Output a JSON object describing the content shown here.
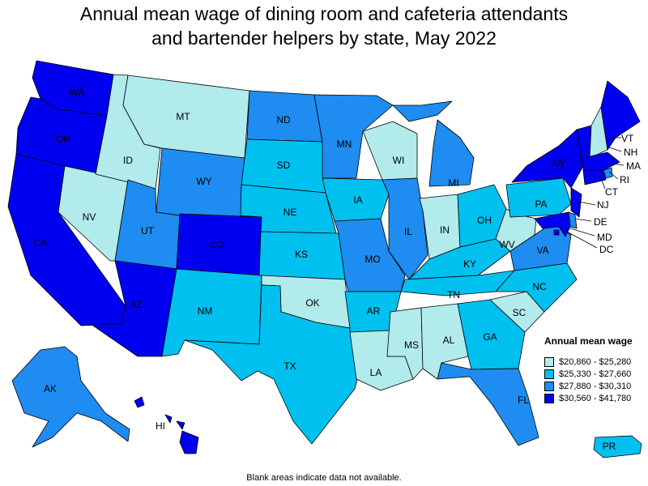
{
  "title_line1": "Annual mean wage of dining room and cafeteria attendants",
  "title_line2": "and bartender helpers by state, May 2022",
  "legend": {
    "title": "Annual mean wage",
    "items": [
      {
        "label": "$20,860 - $25,280",
        "color": "#b2ebeb"
      },
      {
        "label": "$25,330 - $27,660",
        "color": "#00c0f0"
      },
      {
        "label": "$27,880 - $30,310",
        "color": "#1e8cf0"
      },
      {
        "label": "$30,560 - $41,780",
        "color": "#0000f0"
      }
    ]
  },
  "footnote": "Blank areas indicate data not available.",
  "states": {
    "WA": 3,
    "OR": 3,
    "CA": 3,
    "NV": 0,
    "ID": 0,
    "MT": 0,
    "WY": 2,
    "UT": 2,
    "AZ": 3,
    "CO": 3,
    "NM": 1,
    "ND": 2,
    "SD": 1,
    "NE": 1,
    "KS": 1,
    "OK": 0,
    "TX": 1,
    "MN": 2,
    "IA": 1,
    "MO": 2,
    "AR": 1,
    "LA": 0,
    "WI": 0,
    "IL": 2,
    "MI": 2,
    "IN": 0,
    "OH": 1,
    "KY": 1,
    "TN": 1,
    "MS": 0,
    "AL": 0,
    "GA": 1,
    "FL": 2,
    "SC": 0,
    "NC": 1,
    "VA": 2,
    "WV": 0,
    "PA": 1,
    "NY": 3,
    "VT": 3,
    "NH": 0,
    "ME": 3,
    "MA": 3,
    "RI": 2,
    "CT": 3,
    "NJ": 3,
    "DE": 2,
    "MD": 3,
    "DC": 3,
    "AK": 2,
    "HI": 3,
    "PR": 1
  }
}
